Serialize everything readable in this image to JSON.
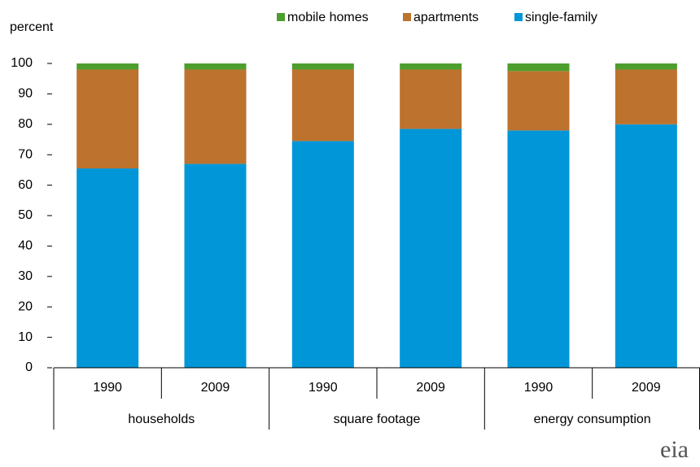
{
  "chart_data": {
    "type": "stacked_bar",
    "y_label": "percent",
    "categories": [
      "1990",
      "2009",
      "1990",
      "2009",
      "1990",
      "2009"
    ],
    "category_groups": [
      "households",
      "square footage",
      "energy consumption"
    ],
    "series": [
      {
        "name": "single-family",
        "color": "#0096d7",
        "values": [
          65.5,
          67,
          74.5,
          78.5,
          78,
          80
        ]
      },
      {
        "name": "apartments",
        "color": "#bd722d",
        "values": [
          32.5,
          31,
          23.5,
          19.5,
          19.5,
          18
        ]
      },
      {
        "name": "mobile homes",
        "color": "#4e9e2e",
        "values": [
          2,
          2,
          2,
          2,
          2.5,
          2
        ]
      }
    ],
    "legend_order": [
      2,
      1,
      0
    ],
    "ylim": [
      0,
      100
    ],
    "yticks": [
      0,
      10,
      20,
      30,
      40,
      50,
      60,
      70,
      80,
      90,
      100
    ],
    "logo": "eia"
  }
}
